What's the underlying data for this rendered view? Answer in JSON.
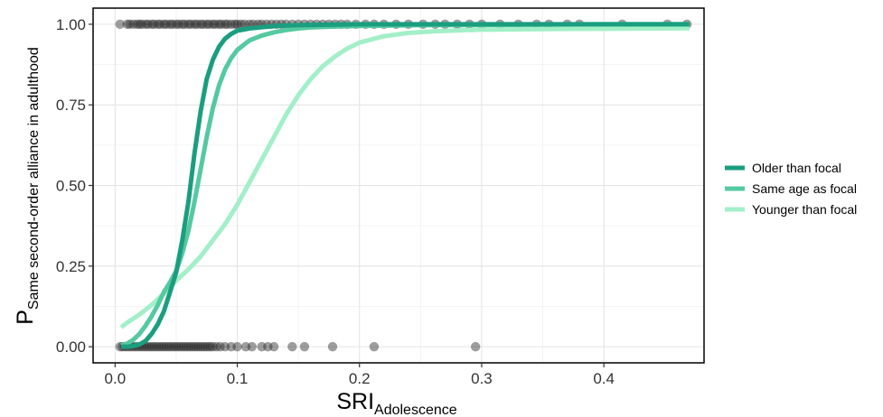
{
  "chart_data": {
    "type": "scatter",
    "xlabel": {
      "main": "SRI",
      "sub": "Adolescence"
    },
    "ylabel": {
      "main": "P",
      "sub": "Same second-order alliance in adulthood"
    },
    "xlim": [
      -0.018,
      0.482
    ],
    "ylim": [
      -0.05,
      1.05
    ],
    "x_ticks": [
      0.0,
      0.1,
      0.2,
      0.3,
      0.4
    ],
    "x_tick_labels": [
      "0.0",
      "0.1",
      "0.2",
      "0.3",
      "0.4"
    ],
    "y_ticks": [
      0.0,
      0.25,
      0.5,
      0.75,
      1.0
    ],
    "y_tick_labels": [
      "0.00",
      "0.25",
      "0.50",
      "0.75",
      "1.00"
    ],
    "grid": true,
    "legend_position": "right",
    "series": [
      {
        "name": "Older than focal",
        "color": "#1a9e80",
        "x": [
          0.005,
          0.01,
          0.015,
          0.02,
          0.025,
          0.03,
          0.035,
          0.04,
          0.045,
          0.05,
          0.055,
          0.06,
          0.065,
          0.07,
          0.075,
          0.08,
          0.085,
          0.09,
          0.095,
          0.1,
          0.11,
          0.12,
          0.13,
          0.14,
          0.15,
          0.16,
          0.18,
          0.2,
          0.25,
          0.3,
          0.35,
          0.4,
          0.47
        ],
        "y": [
          0.0,
          0.0,
          0.002,
          0.007,
          0.018,
          0.04,
          0.07,
          0.11,
          0.17,
          0.23,
          0.33,
          0.45,
          0.6,
          0.73,
          0.83,
          0.89,
          0.93,
          0.955,
          0.97,
          0.98,
          0.987,
          0.991,
          0.994,
          0.996,
          0.997,
          0.998,
          0.999,
          1.0,
          1.0,
          1.0,
          1.0,
          1.0,
          1.0
        ]
      },
      {
        "name": "Same age as focal",
        "color": "#55c9a0",
        "x": [
          0.005,
          0.01,
          0.015,
          0.02,
          0.025,
          0.03,
          0.035,
          0.04,
          0.045,
          0.05,
          0.055,
          0.06,
          0.065,
          0.07,
          0.075,
          0.08,
          0.085,
          0.09,
          0.095,
          0.1,
          0.11,
          0.12,
          0.13,
          0.14,
          0.15,
          0.16,
          0.18,
          0.2,
          0.25,
          0.3,
          0.35,
          0.4,
          0.47
        ],
        "y": [
          0.004,
          0.01,
          0.022,
          0.04,
          0.065,
          0.095,
          0.13,
          0.17,
          0.2,
          0.235,
          0.29,
          0.36,
          0.45,
          0.55,
          0.65,
          0.74,
          0.81,
          0.86,
          0.895,
          0.92,
          0.95,
          0.965,
          0.975,
          0.982,
          0.987,
          0.99,
          0.993,
          0.995,
          0.997,
          0.998,
          0.999,
          1.0,
          1.0
        ]
      },
      {
        "name": "Younger than focal",
        "color": "#a2efc8",
        "x": [
          0.005,
          0.01,
          0.02,
          0.03,
          0.04,
          0.05,
          0.06,
          0.07,
          0.08,
          0.09,
          0.1,
          0.11,
          0.12,
          0.13,
          0.14,
          0.15,
          0.16,
          0.17,
          0.18,
          0.19,
          0.2,
          0.22,
          0.24,
          0.26,
          0.28,
          0.3,
          0.32,
          0.35,
          0.4,
          0.45,
          0.47
        ],
        "y": [
          0.06,
          0.075,
          0.1,
          0.13,
          0.165,
          0.205,
          0.24,
          0.28,
          0.33,
          0.38,
          0.44,
          0.51,
          0.58,
          0.65,
          0.72,
          0.78,
          0.83,
          0.87,
          0.9,
          0.925,
          0.943,
          0.963,
          0.973,
          0.978,
          0.981,
          0.983,
          0.984,
          0.985,
          0.986,
          0.987,
          0.988
        ]
      }
    ],
    "points": {
      "y1": [
        0.004,
        0.01,
        0.012,
        0.015,
        0.018,
        0.02,
        0.022,
        0.025,
        0.027,
        0.03,
        0.032,
        0.035,
        0.037,
        0.04,
        0.042,
        0.045,
        0.047,
        0.05,
        0.052,
        0.055,
        0.057,
        0.06,
        0.062,
        0.065,
        0.067,
        0.07,
        0.072,
        0.075,
        0.077,
        0.08,
        0.082,
        0.085,
        0.087,
        0.09,
        0.092,
        0.095,
        0.098,
        0.1,
        0.103,
        0.106,
        0.11,
        0.113,
        0.117,
        0.12,
        0.124,
        0.128,
        0.132,
        0.136,
        0.14,
        0.145,
        0.15,
        0.155,
        0.16,
        0.165,
        0.17,
        0.175,
        0.18,
        0.185,
        0.19,
        0.197,
        0.205,
        0.212,
        0.22,
        0.23,
        0.24,
        0.252,
        0.262,
        0.27,
        0.28,
        0.29,
        0.3,
        0.315,
        0.33,
        0.345,
        0.355,
        0.37,
        0.38,
        0.415,
        0.452,
        0.468
      ],
      "y0": [
        0.004,
        0.006,
        0.008,
        0.01,
        0.012,
        0.014,
        0.016,
        0.018,
        0.02,
        0.022,
        0.024,
        0.026,
        0.028,
        0.03,
        0.032,
        0.034,
        0.036,
        0.038,
        0.04,
        0.042,
        0.044,
        0.046,
        0.048,
        0.05,
        0.052,
        0.054,
        0.056,
        0.058,
        0.06,
        0.062,
        0.064,
        0.066,
        0.068,
        0.07,
        0.072,
        0.074,
        0.076,
        0.078,
        0.08,
        0.083,
        0.086,
        0.09,
        0.095,
        0.1,
        0.107,
        0.112,
        0.12,
        0.125,
        0.13,
        0.145,
        0.155,
        0.178,
        0.212,
        0.295
      ]
    }
  }
}
